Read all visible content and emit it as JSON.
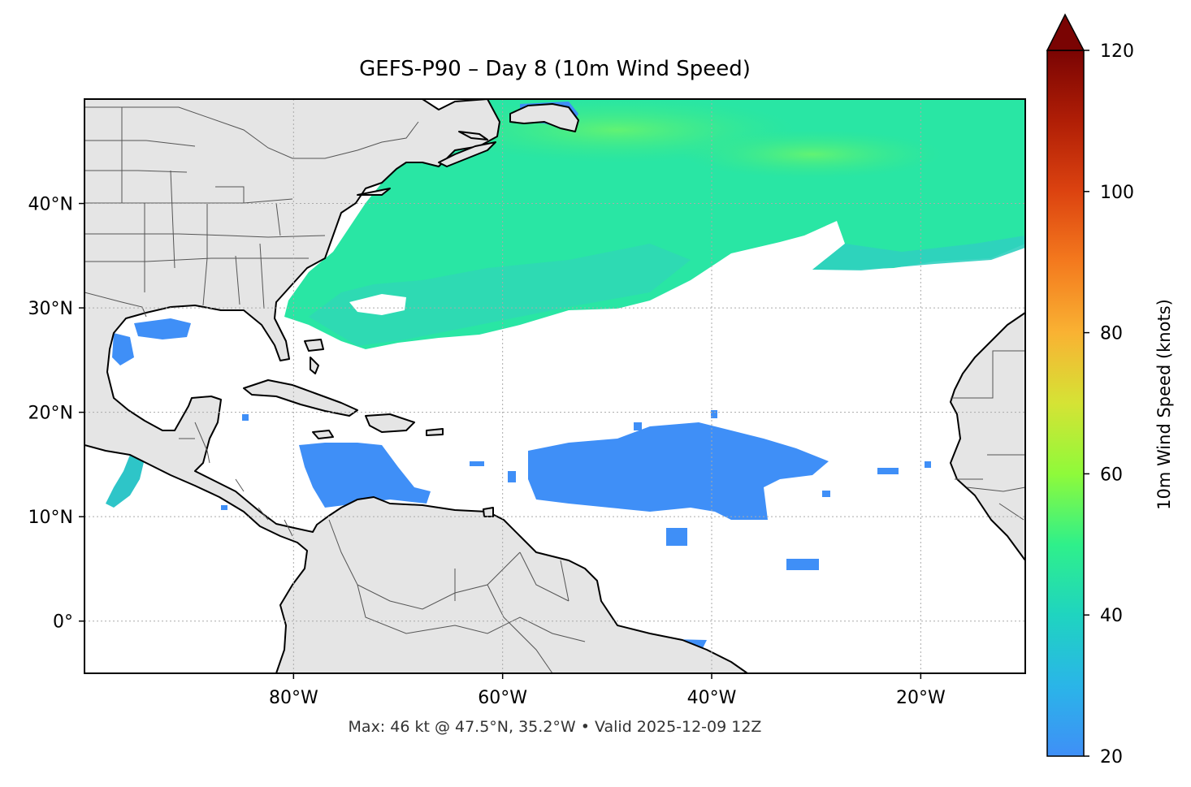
{
  "title": "GEFS-P90 – Day 8 (10m Wind Speed)",
  "footer": "Max: 46 kt @ 47.5°N, 35.2°W • Valid 2025-12-09 12Z",
  "map": {
    "extent": {
      "lon_min": -100,
      "lon_max": -10,
      "lat_min": -5,
      "lat_max": 50
    },
    "lon_ticks": [
      {
        "value": -80,
        "label": "80°W"
      },
      {
        "value": -60,
        "label": "60°W"
      },
      {
        "value": -40,
        "label": "40°W"
      },
      {
        "value": -20,
        "label": "20°W"
      }
    ],
    "lat_ticks": [
      {
        "value": 40,
        "label": "40°N"
      },
      {
        "value": 30,
        "label": "30°N"
      },
      {
        "value": 20,
        "label": "20°N"
      },
      {
        "value": 10,
        "label": "10°N"
      },
      {
        "value": 0,
        "label": "0°"
      }
    ],
    "gridlines": true,
    "land_color": "#e5e5e5",
    "ocean_color": "#ffffff"
  },
  "colorbar": {
    "label": "10m Wind Speed (knots)",
    "min": 20,
    "max": 120,
    "extend": "max",
    "ticks": [
      {
        "value": 20,
        "label": "20"
      },
      {
        "value": 40,
        "label": "40"
      },
      {
        "value": 60,
        "label": "60"
      },
      {
        "value": 80,
        "label": "80"
      },
      {
        "value": 100,
        "label": "100"
      },
      {
        "value": 120,
        "label": "120"
      }
    ],
    "colormap": [
      "#3f8ff7",
      "#2ab5e8",
      "#1fd4c0",
      "#2ff08a",
      "#8ffa3a",
      "#d5e335",
      "#f9b233",
      "#f47a1e",
      "#dc4310",
      "#b01e06",
      "#7a0403"
    ]
  },
  "wind_regions": [
    {
      "name": "north-atlantic-band",
      "speed_kt": 34
    },
    {
      "name": "caribbean-patch",
      "speed_kt": 22
    },
    {
      "name": "tropical-atlantic-patch",
      "speed_kt": 22
    },
    {
      "name": "eastern-pacific-patch",
      "speed_kt": 28
    },
    {
      "name": "gulf-patch",
      "speed_kt": 21
    },
    {
      "name": "great-lakes-patch",
      "speed_kt": 21
    }
  ],
  "max_marker": {
    "lat": 47.5,
    "lon": -35.2,
    "speed_kt": 46
  }
}
